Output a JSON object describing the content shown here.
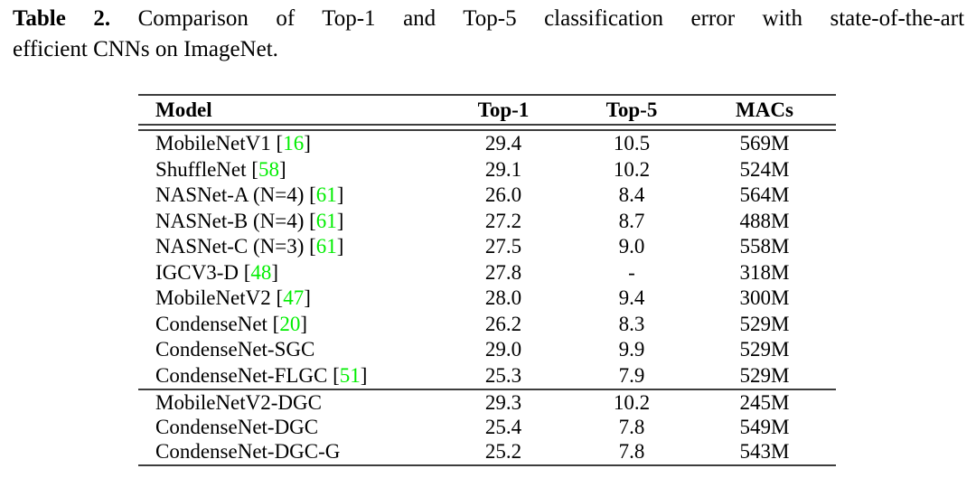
{
  "caption": {
    "label": "Table 2.",
    "line1_rest": "Comparison of Top-1 and Top-5 classification error with state-of-the-art",
    "line2": "efficient CNNs on ImageNet."
  },
  "table": {
    "headers": [
      "Model",
      "Top-1",
      "Top-5",
      "MACs"
    ],
    "groups": [
      {
        "rows": [
          {
            "model": "MobileNetV1",
            "cite": "16",
            "top1": "29.4",
            "top5": "10.5",
            "macs": "569M"
          },
          {
            "model": "ShuffleNet",
            "cite": "58",
            "top1": "29.1",
            "top5": "10.2",
            "macs": "524M"
          },
          {
            "model": "NASNet-A (N=4)",
            "cite": "61",
            "top1": "26.0",
            "top5": "8.4",
            "macs": "564M"
          },
          {
            "model": "NASNet-B (N=4)",
            "cite": "61",
            "top1": "27.2",
            "top5": "8.7",
            "macs": "488M"
          },
          {
            "model": "NASNet-C (N=3)",
            "cite": "61",
            "top1": "27.5",
            "top5": "9.0",
            "macs": "558M"
          },
          {
            "model": "IGCV3-D",
            "cite": "48",
            "top1": "27.8",
            "top5": "-",
            "macs": "318M"
          },
          {
            "model": "MobileNetV2",
            "cite": "47",
            "top1": "28.0",
            "top5": "9.4",
            "macs": "300M"
          },
          {
            "model": "CondenseNet",
            "cite": "20",
            "top1": "26.2",
            "top5": "8.3",
            "macs": "529M"
          },
          {
            "model": "CondenseNet-SGC",
            "cite": "",
            "top1": "29.0",
            "top5": "9.9",
            "macs": "529M"
          },
          {
            "model": "CondenseNet-FLGC",
            "cite": "51",
            "top1": "25.3",
            "top5": "7.9",
            "macs": "529M"
          }
        ]
      },
      {
        "rows": [
          {
            "model": "MobileNetV2-DGC",
            "cite": "",
            "top1": "29.3",
            "top5": "10.2",
            "macs": "245M"
          },
          {
            "model": "CondenseNet-DGC",
            "cite": "",
            "top1": "25.4",
            "top5": "7.8",
            "macs": "549M"
          },
          {
            "model": "CondenseNet-DGC-G",
            "cite": "",
            "top1": "25.2",
            "top5": "7.8",
            "macs": "543M"
          }
        ]
      }
    ]
  },
  "colors": {
    "citation_green": "#00ee00",
    "text": "#000000",
    "rule": "#3d3d3d",
    "background": "#ffffff"
  }
}
